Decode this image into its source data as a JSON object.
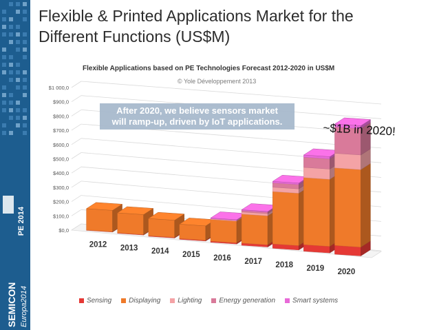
{
  "slide": {
    "title_line1": "Flexible & Printed Applications Market for the",
    "title_line2": "Different Functions (US$M)"
  },
  "sidebar": {
    "brand": "SEMICON",
    "event": "Europa2014",
    "badge": "PE 2014",
    "colors": {
      "background": "#1d5d8f",
      "accent": "#ffffff"
    }
  },
  "annotations": {
    "copyright": "© Yole Développement 2013",
    "callout_line1": "After 2020, we believe sensors market",
    "callout_line2": "will ramp-up, driven by IoT applications.",
    "forecast_note": "~$1B in 2020!"
  },
  "chart_data": {
    "type": "bar",
    "stacked": true,
    "three_d": true,
    "title": "Flexible Applications based on PE Technologies Forecast 2012-2020 in US$M",
    "categories": [
      "2012",
      "2013",
      "2014",
      "2015",
      "2016",
      "2017",
      "2018",
      "2019",
      "2020"
    ],
    "y_ticks": [
      "$0,0",
      "$100,0",
      "$200,0",
      "$300,0",
      "$400,0",
      "$500,0",
      "$600,0",
      "$700,0",
      "$800,0",
      "$900,0",
      "$1 000,0"
    ],
    "ylim": [
      0,
      1000
    ],
    "grid": true,
    "legend_position": "bottom",
    "series": [
      {
        "name": "Sensing",
        "color": "#e53935",
        "values": [
          2,
          3,
          4,
          5,
          8,
          15,
          30,
          45,
          60
        ]
      },
      {
        "name": "Displaying",
        "color": "#ef7a2a",
        "values": [
          150,
          140,
          120,
          100,
          150,
          200,
          360,
          460,
          530
        ]
      },
      {
        "name": "Lighting",
        "color": "#f4a3a6",
        "values": [
          0,
          0,
          0,
          0,
          5,
          15,
          30,
          70,
          100
        ]
      },
      {
        "name": "Energy generation",
        "color": "#d97a9a",
        "values": [
          0,
          0,
          0,
          0,
          0,
          10,
          30,
          70,
          180
        ]
      },
      {
        "name": "Smart systems",
        "color": "#e86ad8",
        "values": [
          0,
          0,
          0,
          0,
          5,
          5,
          10,
          15,
          20
        ]
      }
    ]
  }
}
